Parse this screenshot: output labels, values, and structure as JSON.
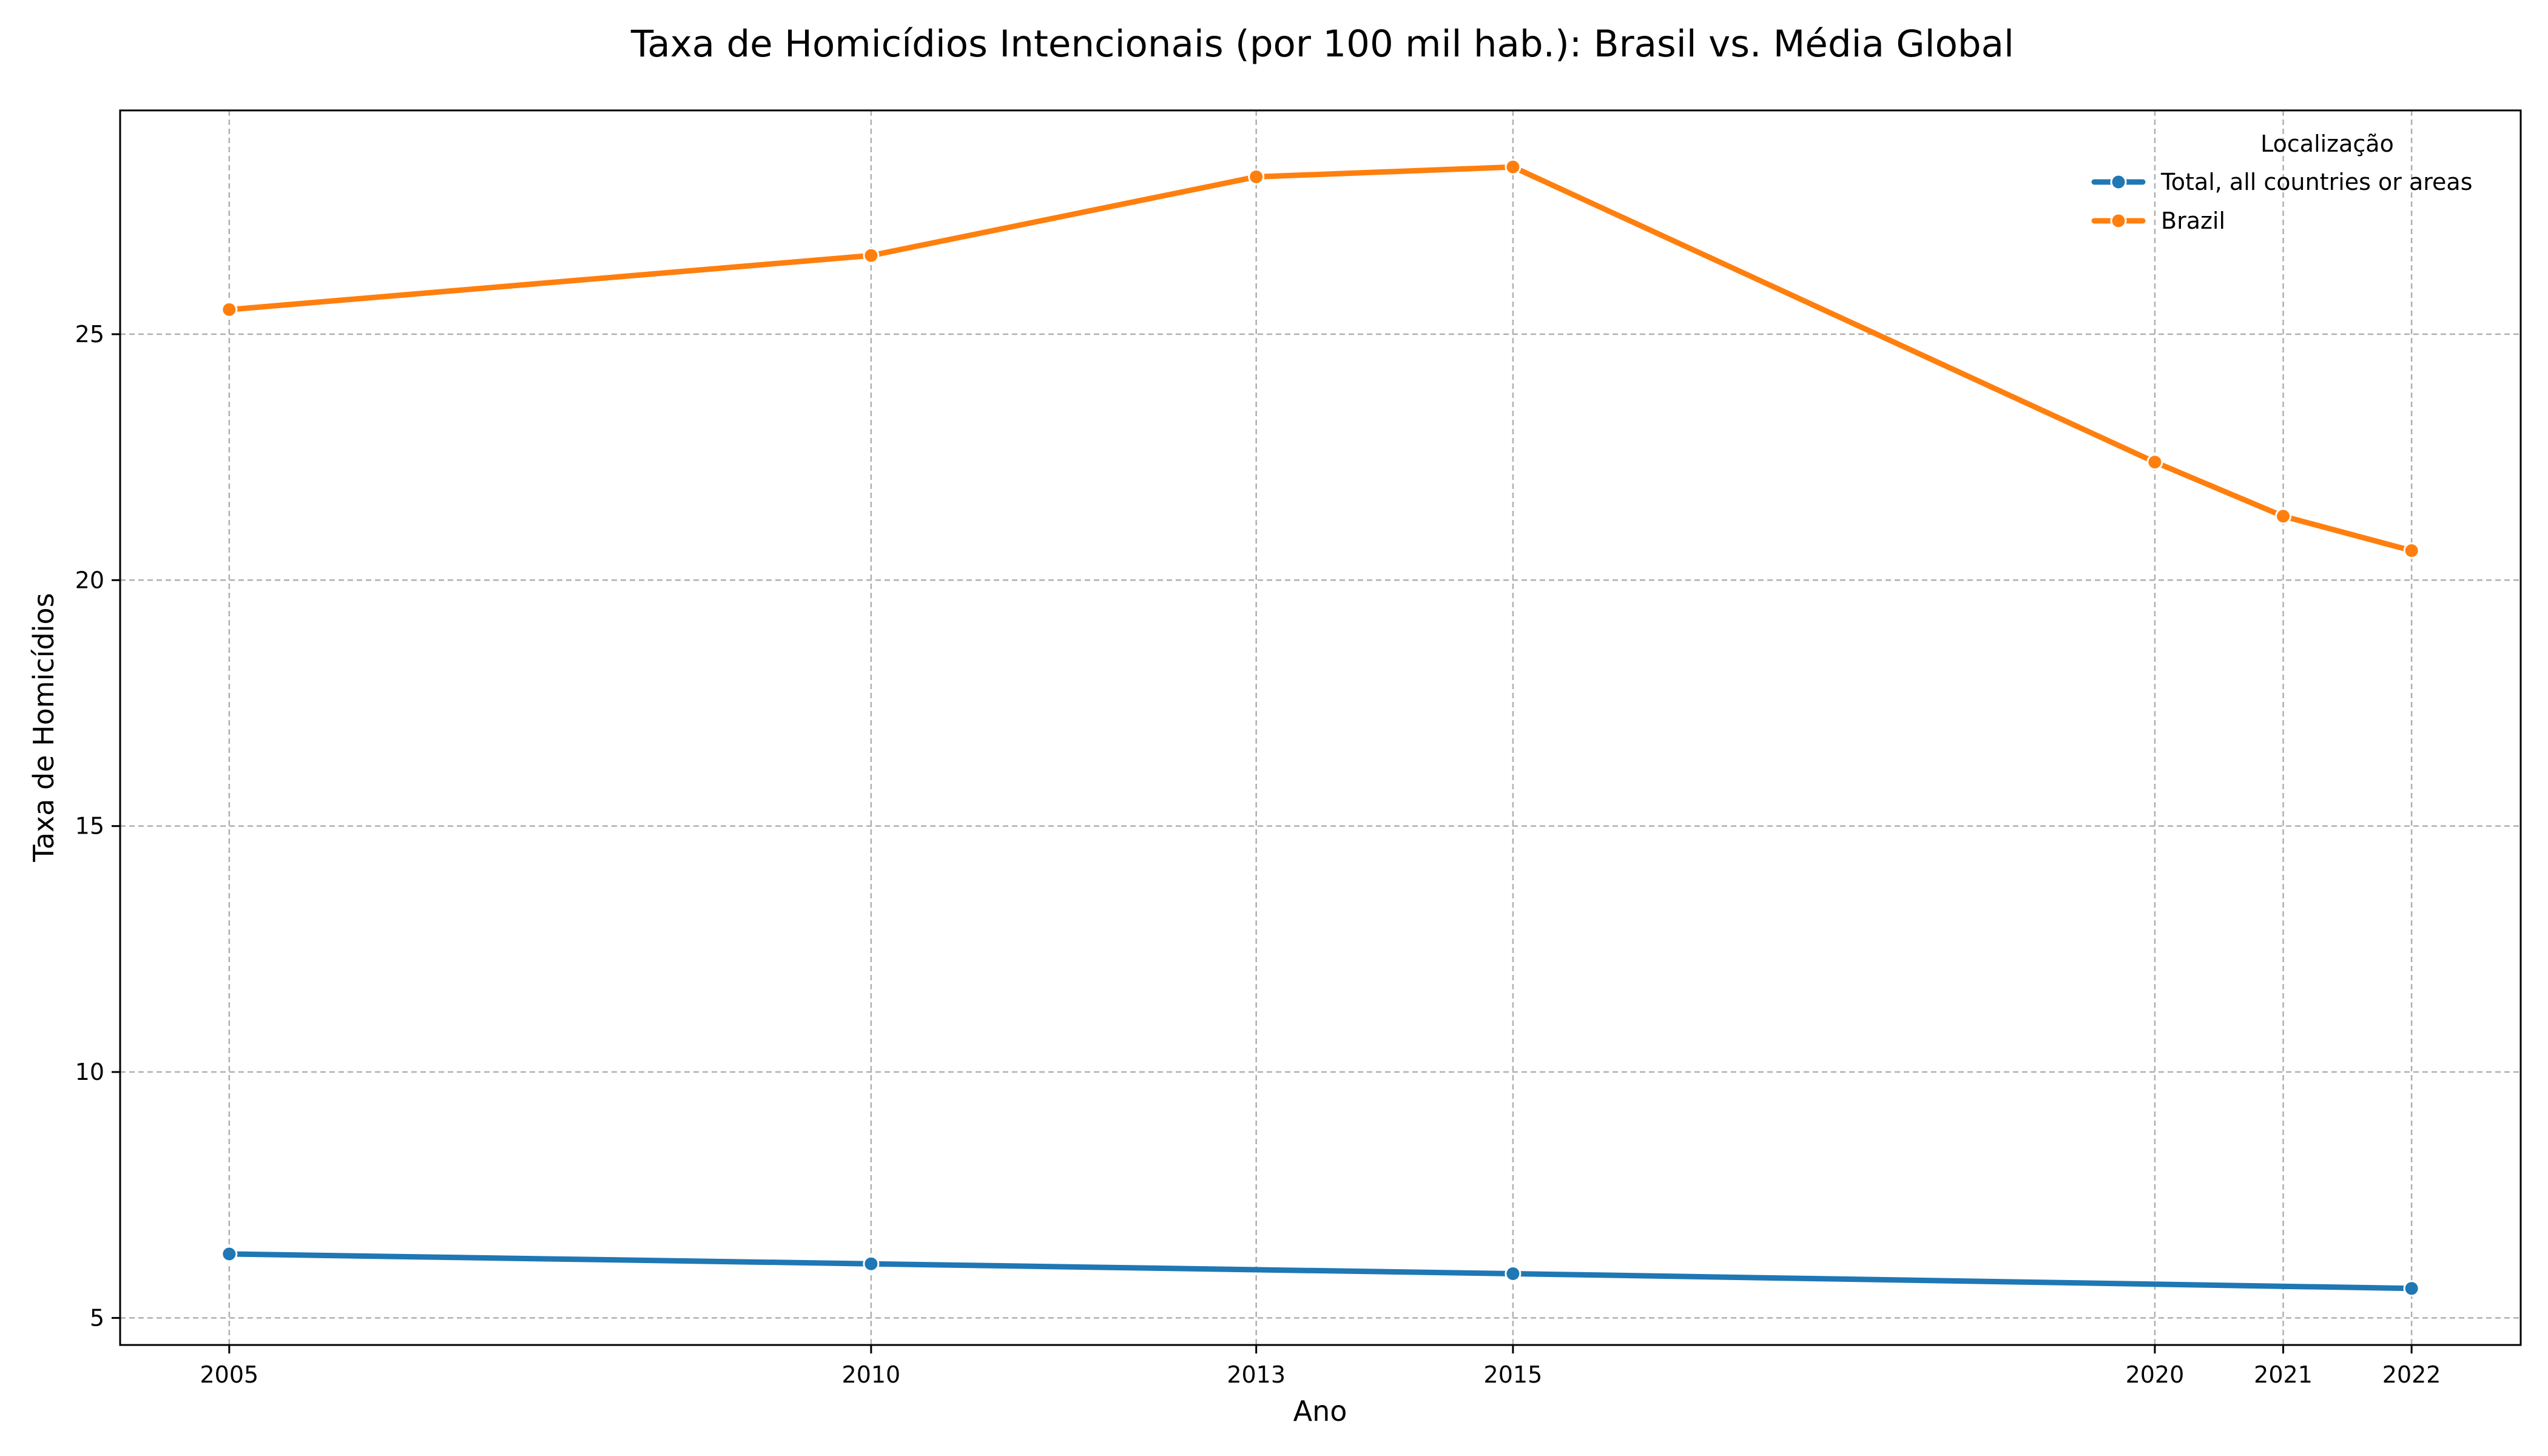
{
  "chart_data": {
    "type": "line",
    "title": "Taxa de Homicídios Intencionais (por 100 mil hab.): Brasil vs. Média Global",
    "xlabel": "Ano",
    "ylabel": "Taxa de Homicídios",
    "x": [
      2005,
      2010,
      2013,
      2015,
      2020,
      2021,
      2022
    ],
    "x_ticks": [
      "2005",
      "2010",
      "2013",
      "2015",
      "2020",
      "2021",
      "2022"
    ],
    "xlim": [
      2004.15,
      2022.85
    ],
    "y_ticks": [
      "5",
      "10",
      "15",
      "20",
      "25"
    ],
    "ylim": [
      4.45,
      29.55
    ],
    "grid": true,
    "legend": {
      "title": "Localização",
      "placement": "top-right"
    },
    "series": [
      {
        "name": "Total, all countries or areas",
        "color": "#1f77b4",
        "x": [
          2005,
          2010,
          2015,
          2022
        ],
        "values": [
          6.3,
          6.1,
          5.9,
          5.6
        ]
      },
      {
        "name": "Brazil",
        "color": "#ff7f0e",
        "x": [
          2005,
          2010,
          2013,
          2015,
          2020,
          2021,
          2022
        ],
        "values": [
          25.5,
          26.6,
          28.2,
          28.4,
          22.4,
          21.3,
          20.6
        ]
      }
    ]
  }
}
